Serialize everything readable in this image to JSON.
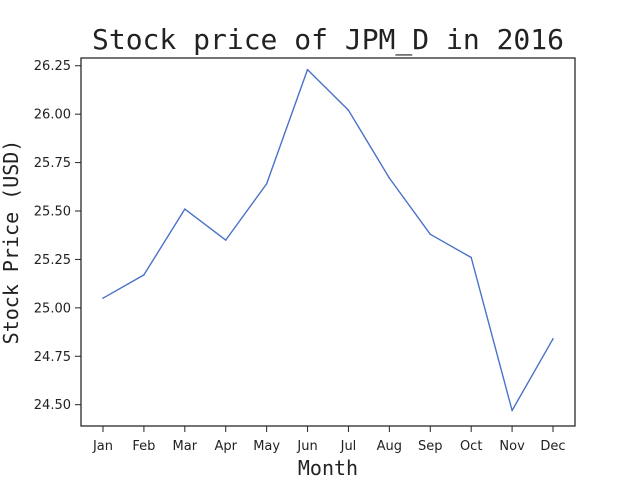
{
  "chart_data": {
    "type": "line",
    "title": "Stock price of JPM_D in 2016",
    "xlabel": "Month",
    "ylabel": "Stock Price (USD)",
    "categories": [
      "Jan",
      "Feb",
      "Mar",
      "Apr",
      "May",
      "Jun",
      "Jul",
      "Aug",
      "Sep",
      "Oct",
      "Nov",
      "Dec"
    ],
    "series": [
      {
        "values": [
          25.05,
          25.17,
          25.51,
          25.35,
          25.64,
          26.23,
          26.02,
          25.67,
          25.38,
          25.26,
          24.47,
          24.84
        ],
        "color": "#4a72c8"
      }
    ],
    "ylim": [
      24.39,
      26.29
    ],
    "yticks": [
      24.5,
      24.75,
      25.0,
      25.25,
      25.5,
      25.75,
      26.0,
      26.25
    ],
    "ytick_labels": [
      "24.50",
      "24.75",
      "25.00",
      "25.25",
      "25.50",
      "25.75",
      "26.00",
      "26.25"
    ],
    "grid": false,
    "legend": "none"
  }
}
